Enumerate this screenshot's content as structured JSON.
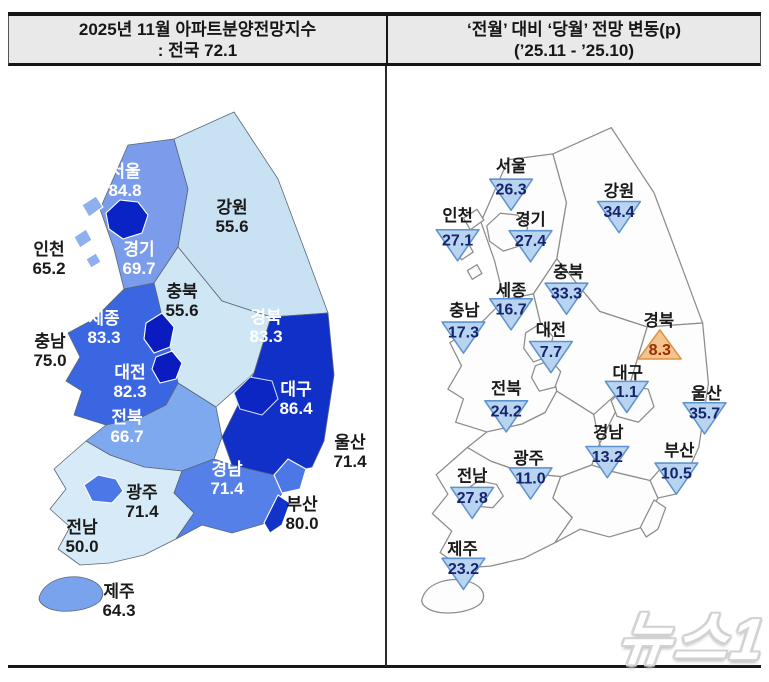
{
  "header": {
    "left": {
      "line1": "2025년 11월 아파트분양전망지수",
      "line2": ": 전국 72.1"
    },
    "right": {
      "line1": "‘전월’ 대비 ‘당월’ 전망 변동(p)",
      "line2": "(’25.11  -  ’25.10)"
    }
  },
  "watermark": "뉴스1",
  "chart_data": [
    {
      "type": "choropleth_map",
      "title": "2025년 11월 아파트분양전망지수 : 전국 72.1",
      "national_label": "전국",
      "national_value": 72.1,
      "area": "South Korea provinces",
      "regions": [
        {
          "id": "seoul",
          "name": "서울",
          "value": 84.8,
          "label": "84.8",
          "fill": "#0a23c5",
          "label_color": "#ffffff"
        },
        {
          "id": "gangwon",
          "name": "강원",
          "value": 55.6,
          "label": "55.6",
          "fill": "#c9e2f3",
          "label_color": "#1a1a1a"
        },
        {
          "id": "incheon",
          "name": "인천",
          "value": 65.2,
          "label": "65.2",
          "fill": "#8fb0ee",
          "label_color": "#1a1a1a"
        },
        {
          "id": "gyeonggi",
          "name": "경기",
          "value": 69.7,
          "label": "69.7",
          "fill": "#7b9cea",
          "label_color": "#ffffff"
        },
        {
          "id": "chungbuk",
          "name": "충북",
          "value": 55.6,
          "label": "55.6",
          "fill": "#cfe6f4",
          "label_color": "#1a1a1a"
        },
        {
          "id": "sejong",
          "name": "세종",
          "value": 83.3,
          "label": "83.3",
          "fill": "#0a1cc0",
          "label_color": "#ffffff"
        },
        {
          "id": "gyeongbuk",
          "name": "경북",
          "value": 83.3,
          "label": "83.3",
          "fill": "#1130c8",
          "label_color": "#ffffff"
        },
        {
          "id": "chungnam",
          "name": "충남",
          "value": 75.0,
          "label": "75.0",
          "fill": "#3b66e2",
          "label_color": "#1a1a1a"
        },
        {
          "id": "daejeon",
          "name": "대전",
          "value": 82.3,
          "label": "82.3",
          "fill": "#0a1cc0",
          "label_color": "#ffffff"
        },
        {
          "id": "daegu",
          "name": "대구",
          "value": 86.4,
          "label": "86.4",
          "fill": "#0c26c3",
          "label_color": "#ffffff"
        },
        {
          "id": "jeonbuk",
          "name": "전북",
          "value": 66.7,
          "label": "66.7",
          "fill": "#7ea9ef",
          "label_color": "#ffffff"
        },
        {
          "id": "ulsan",
          "name": "울산",
          "value": 71.4,
          "label": "71.4",
          "fill": "#4c77e6",
          "label_color": "#1a1a1a"
        },
        {
          "id": "gyeongnam",
          "name": "경남",
          "value": 71.4,
          "label": "71.4",
          "fill": "#5580e7",
          "label_color": "#ffffff"
        },
        {
          "id": "gwangju",
          "name": "광주",
          "value": 71.4,
          "label": "71.4",
          "fill": "#4c77e6",
          "label_color": "#1a1a1a"
        },
        {
          "id": "busan",
          "name": "부산",
          "value": 80.0,
          "label": "80.0",
          "fill": "#1133c9",
          "label_color": "#1a1a1a"
        },
        {
          "id": "jeonnam",
          "name": "전남",
          "value": 50.0,
          "label": "50.0",
          "fill": "#d6ebf7",
          "label_color": "#1a1a1a"
        },
        {
          "id": "jeju",
          "name": "제주",
          "value": 64.3,
          "label": "64.3",
          "fill": "#79a3ed",
          "label_color": "#1a1a1a"
        }
      ]
    },
    {
      "type": "symbol_map",
      "title": "‘전월’ 대비 ‘당월’ 전망 변동(p) (’25.11 - ’25.10)",
      "marker_colors": {
        "down_fill": "#b9d4f0",
        "down_border": "#5f93cf",
        "down_text": "#16246e",
        "up_fill": "#f5c38c",
        "up_border": "#d9944a",
        "up_text": "#9c2d00",
        "region_fill": "#fdfdfd",
        "region_border": "#8d8d8d"
      },
      "regions": [
        {
          "id": "seoul",
          "name": "서울",
          "change": -26.3,
          "display": "26.3",
          "direction": "down"
        },
        {
          "id": "incheon",
          "name": "인천",
          "change": -27.1,
          "display": "27.1",
          "direction": "down"
        },
        {
          "id": "gyeonggi",
          "name": "경기",
          "change": -27.4,
          "display": "27.4",
          "direction": "down"
        },
        {
          "id": "gangwon",
          "name": "강원",
          "change": -34.4,
          "display": "34.4",
          "direction": "down"
        },
        {
          "id": "chungbuk",
          "name": "충북",
          "change": -33.3,
          "display": "33.3",
          "direction": "down"
        },
        {
          "id": "sejong",
          "name": "세종",
          "change": -16.7,
          "display": "16.7",
          "direction": "down"
        },
        {
          "id": "chungnam",
          "name": "충남",
          "change": -17.3,
          "display": "17.3",
          "direction": "down"
        },
        {
          "id": "daejeon",
          "name": "대전",
          "change": -7.7,
          "display": "7.7",
          "direction": "down"
        },
        {
          "id": "gyeongbuk",
          "name": "경북",
          "change": 8.3,
          "display": "8.3",
          "direction": "up"
        },
        {
          "id": "daegu",
          "name": "대구",
          "change": -1.1,
          "display": "1.1",
          "direction": "down"
        },
        {
          "id": "jeonbuk",
          "name": "전북",
          "change": -24.2,
          "display": "24.2",
          "direction": "down"
        },
        {
          "id": "ulsan",
          "name": "울산",
          "change": -35.7,
          "display": "35.7",
          "direction": "down"
        },
        {
          "id": "gyeongnam",
          "name": "경남",
          "change": -13.2,
          "display": "13.2",
          "direction": "down"
        },
        {
          "id": "busan",
          "name": "부산",
          "change": -10.5,
          "display": "10.5",
          "direction": "down"
        },
        {
          "id": "gwangju",
          "name": "광주",
          "change": -11.0,
          "display": "11.0",
          "direction": "down"
        },
        {
          "id": "jeonnam",
          "name": "전남",
          "change": -27.8,
          "display": "27.8",
          "direction": "down"
        },
        {
          "id": "jeju",
          "name": "제주",
          "change": -23.2,
          "display": "23.2",
          "direction": "down"
        }
      ]
    }
  ]
}
